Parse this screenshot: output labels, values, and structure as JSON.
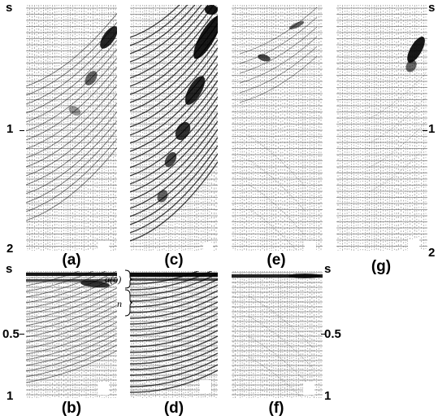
{
  "figure": {
    "panel_labels": [
      "(a)",
      "(b)",
      "(c)",
      "(d)",
      "(e)",
      "(f)",
      "(g)"
    ],
    "top_axis": {
      "unit": "s",
      "ticks": [
        "1",
        "2"
      ]
    },
    "bottom_axis": {
      "unit": "s",
      "ticks": [
        "0.5",
        "1"
      ]
    },
    "annotations": {
      "alpha": "α(o)",
      "n": "n"
    }
  }
}
